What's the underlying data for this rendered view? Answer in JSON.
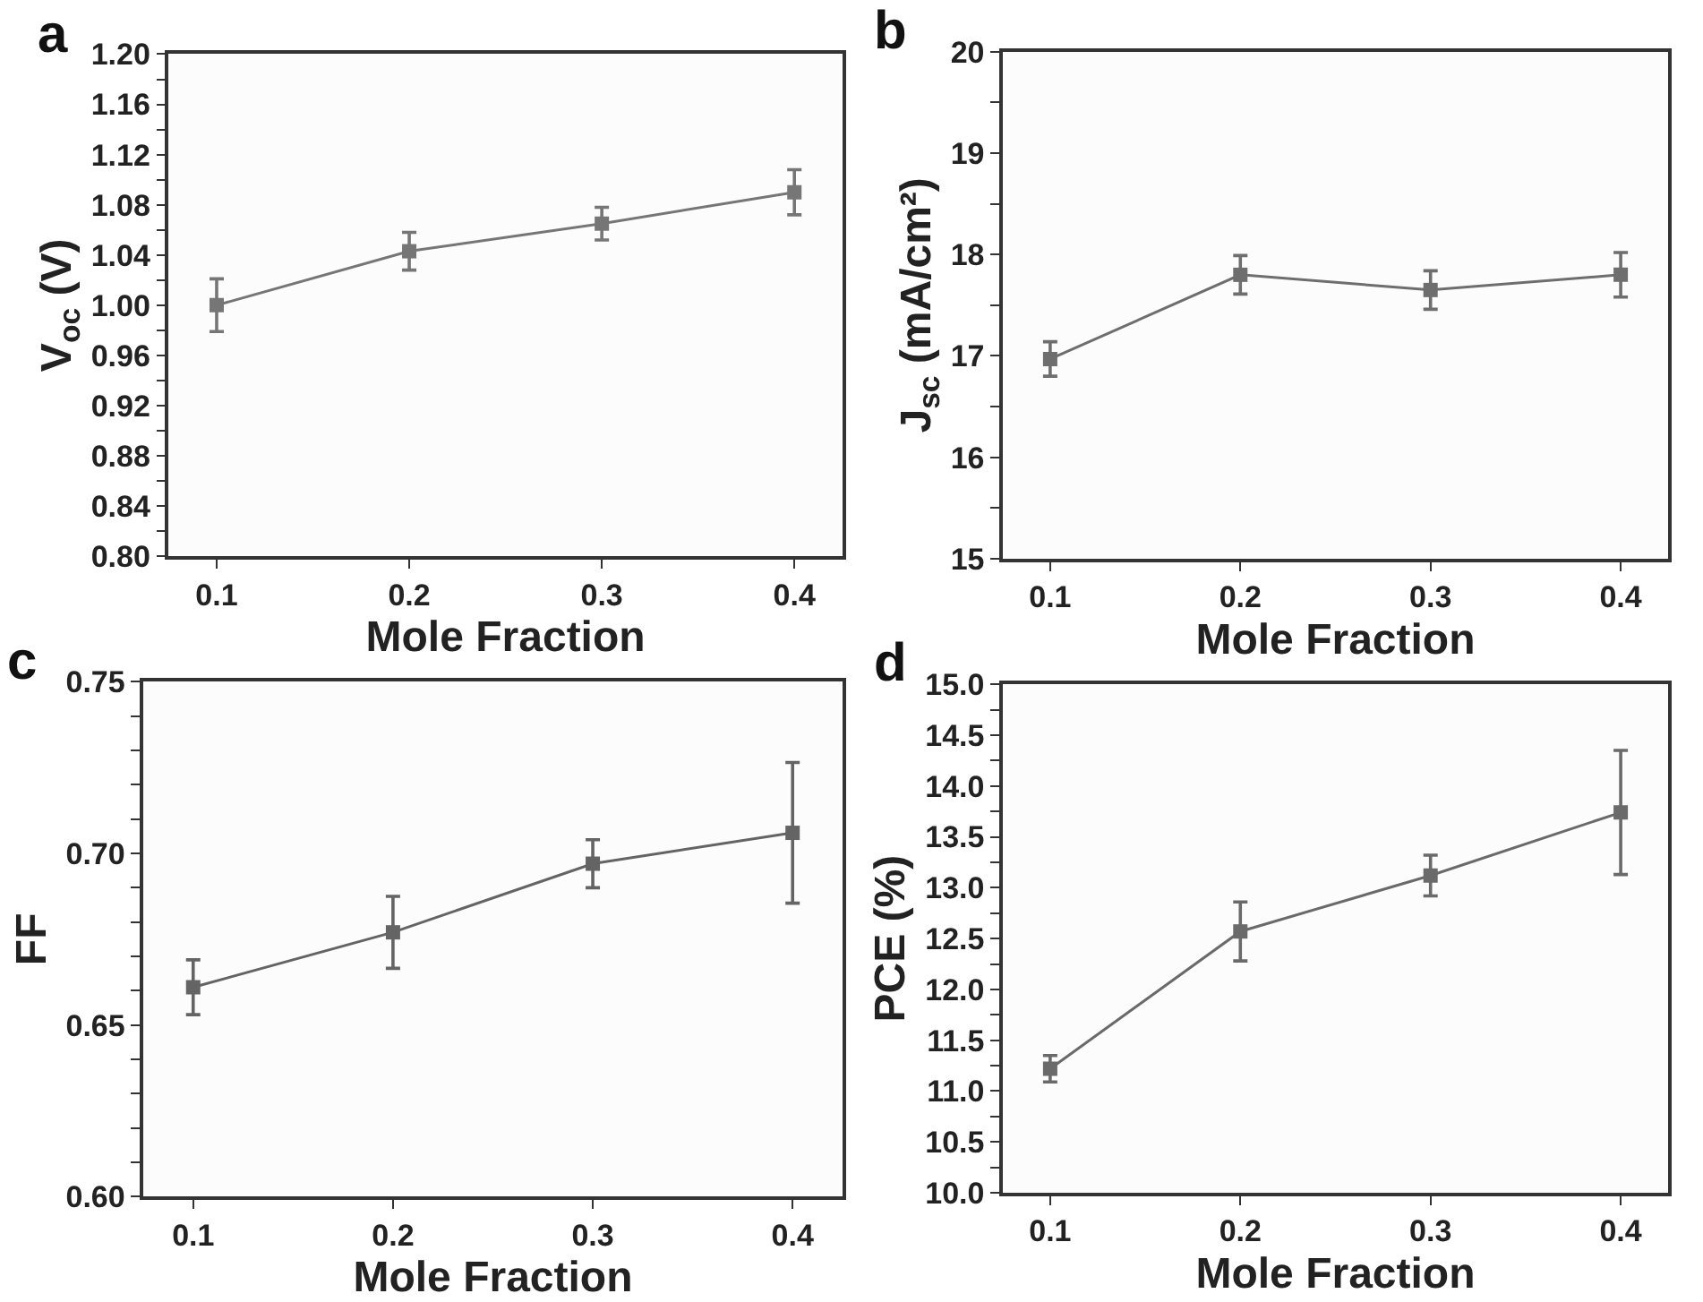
{
  "chart_data": [
    {
      "type": "line",
      "title": "a",
      "xlabel": "Mole Fraction",
      "ylabel": "V$_{oc}$ (V)",
      "x": [
        0.1,
        0.2,
        0.3,
        0.4
      ],
      "marker": "square",
      "line_style": "solid",
      "series": [
        {
          "color": "#767676",
          "values": [
            1.0,
            1.043,
            1.065,
            1.09
          ],
          "errors": [
            0.021,
            0.015,
            0.013,
            0.018
          ]
        }
      ],
      "xlim": [
        0.075,
        0.425
      ],
      "xticks": [
        0.1,
        0.2,
        0.3,
        0.4
      ],
      "ylim": [
        0.8,
        1.2
      ],
      "yticks": [
        {
          "value": 0.8,
          "label": "0.80"
        },
        {
          "value": 0.82,
          "label": null
        },
        {
          "value": 0.84,
          "label": "0.84"
        },
        {
          "value": 0.86,
          "label": null
        },
        {
          "value": 0.88,
          "label": "0.88"
        },
        {
          "value": 0.9,
          "label": null
        },
        {
          "value": 0.92,
          "label": "0.92"
        },
        {
          "value": 0.94,
          "label": null
        },
        {
          "value": 0.96,
          "label": "0.96"
        },
        {
          "value": 0.98,
          "label": null
        },
        {
          "value": 1.0,
          "label": "1.00"
        },
        {
          "value": 1.02,
          "label": null
        },
        {
          "value": 1.04,
          "label": "1.04"
        },
        {
          "value": 1.06,
          "label": null
        },
        {
          "value": 1.08,
          "label": "1.08"
        },
        {
          "value": 1.1,
          "label": null
        },
        {
          "value": 1.12,
          "label": "1.12"
        },
        {
          "value": 1.14,
          "label": null
        },
        {
          "value": 1.16,
          "label": "1.16"
        },
        {
          "value": 1.18,
          "label": null
        },
        {
          "value": 1.2,
          "label": "1.20"
        }
      ]
    },
    {
      "type": "line",
      "title": "b",
      "xlabel": "Mole Fraction",
      "ylabel": "J$_{sc}$ (mA/cm²)",
      "x": [
        0.1,
        0.2,
        0.3,
        0.4
      ],
      "marker": "square",
      "line_style": "solid",
      "series": [
        {
          "color": "#6e6e6e",
          "values": [
            16.97,
            17.8,
            17.65,
            17.8
          ],
          "errors": [
            0.17,
            0.19,
            0.19,
            0.22
          ]
        }
      ],
      "xlim": [
        0.075,
        0.425
      ],
      "xticks": [
        0.1,
        0.2,
        0.3,
        0.4
      ],
      "ylim": [
        15,
        20
      ],
      "yticks": [
        15,
        {
          "value": 15.5,
          "label": null
        },
        16,
        {
          "value": 16.5,
          "label": null
        },
        17,
        {
          "value": 17.5,
          "label": null
        },
        18,
        {
          "value": 18.5,
          "label": null
        },
        19,
        {
          "value": 19.5,
          "label": null
        },
        20
      ]
    },
    {
      "type": "line",
      "title": "c",
      "xlabel": "Mole Fraction",
      "ylabel": "FF",
      "x": [
        0.1,
        0.2,
        0.3,
        0.4
      ],
      "marker": "square",
      "line_style": "solid",
      "series": [
        {
          "color": "#646464",
          "values": [
            0.661,
            0.677,
            0.697,
            0.706
          ],
          "errors": [
            0.008,
            0.0105,
            0.007,
            0.0205
          ]
        }
      ],
      "xlim": [
        0.075,
        0.425
      ],
      "xticks": [
        0.1,
        0.2,
        0.3,
        0.4
      ],
      "ylim": [
        0.6,
        0.75
      ],
      "yticks": [
        {
          "value": 0.6,
          "label": "0.60"
        },
        {
          "value": 0.61,
          "label": null
        },
        {
          "value": 0.62,
          "label": null
        },
        {
          "value": 0.63,
          "label": null
        },
        {
          "value": 0.64,
          "label": null
        },
        0.65,
        {
          "value": 0.66,
          "label": null
        },
        {
          "value": 0.67,
          "label": null
        },
        {
          "value": 0.68,
          "label": null
        },
        {
          "value": 0.69,
          "label": null
        },
        {
          "value": 0.7,
          "label": "0.70"
        },
        {
          "value": 0.71,
          "label": null
        },
        {
          "value": 0.72,
          "label": null
        },
        {
          "value": 0.73,
          "label": null
        },
        {
          "value": 0.74,
          "label": null
        },
        0.75
      ]
    },
    {
      "type": "line",
      "title": "d",
      "xlabel": "Mole Fraction",
      "ylabel": "PCE (%)",
      "x": [
        0.1,
        0.2,
        0.3,
        0.4
      ],
      "marker": "square",
      "line_style": "solid",
      "series": [
        {
          "color": "#6a6a6a",
          "values": [
            11.22,
            12.57,
            13.12,
            13.74
          ],
          "errors": [
            0.13,
            0.29,
            0.2,
            0.61
          ]
        }
      ],
      "xlim": [
        0.075,
        0.425
      ],
      "xticks": [
        0.1,
        0.2,
        0.3,
        0.4
      ],
      "ylim": [
        10,
        15
      ],
      "yticks": [
        {
          "value": 10,
          "label": "10.0"
        },
        {
          "value": 10.25,
          "label": null
        },
        10.5,
        {
          "value": 10.75,
          "label": null
        },
        {
          "value": 11,
          "label": "11.0"
        },
        {
          "value": 11.25,
          "label": null
        },
        11.5,
        {
          "value": 11.75,
          "label": null
        },
        {
          "value": 12,
          "label": "12.0"
        },
        {
          "value": 12.25,
          "label": null
        },
        12.5,
        {
          "value": 12.75,
          "label": null
        },
        {
          "value": 13,
          "label": "13.0"
        },
        {
          "value": 13.25,
          "label": null
        },
        13.5,
        {
          "value": 13.75,
          "label": null
        },
        {
          "value": 14,
          "label": "14.0"
        },
        {
          "value": 14.25,
          "label": null
        },
        14.5,
        {
          "value": 14.75,
          "label": null
        },
        {
          "value": 15,
          "label": "15.0"
        }
      ]
    }
  ]
}
